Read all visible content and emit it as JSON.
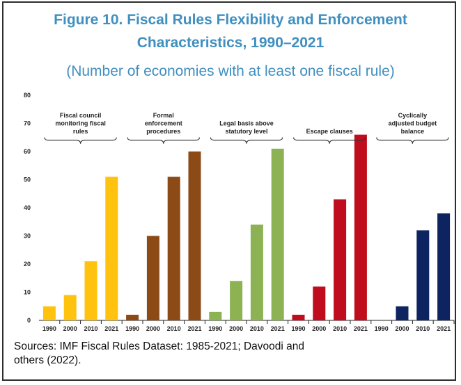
{
  "title_line1": "Figure 10. Fiscal Rules Flexibility and Enforcement",
  "title_line2": "Characteristics, 1990–2021",
  "subtitle": "(Number of economies with at least one fiscal rule)",
  "source_line1": "Sources: IMF Fiscal Rules Dataset: 1985-2021; Davoodi and",
  "source_line2": "others (2022).",
  "chart_data": {
    "type": "bar",
    "ylim": [
      0,
      80
    ],
    "yticks": [
      0,
      10,
      20,
      30,
      40,
      50,
      60,
      70,
      80
    ],
    "categories": [
      "1990",
      "2000",
      "2010",
      "2021"
    ],
    "grid": false,
    "groups": [
      {
        "label": [
          "Fiscal council",
          "monitoring fiscal",
          "rules"
        ],
        "color": "#ffc20e",
        "values": [
          5,
          9,
          21,
          51
        ]
      },
      {
        "label": [
          "Formal",
          "enforcement",
          "procedures"
        ],
        "color": "#8b4a16",
        "values": [
          2,
          30,
          51,
          60
        ]
      },
      {
        "label": [
          "Legal basis above",
          "statutory level"
        ],
        "color": "#8db254",
        "values": [
          3,
          14,
          34,
          61
        ]
      },
      {
        "label": [
          "Escape clauses"
        ],
        "color": "#c00d1e",
        "values": [
          2,
          12,
          43,
          66
        ]
      },
      {
        "label": [
          "Cyclically",
          "adjusted budget",
          "balance"
        ],
        "color": "#0d2461",
        "values": [
          0,
          5,
          32,
          38
        ]
      }
    ]
  }
}
